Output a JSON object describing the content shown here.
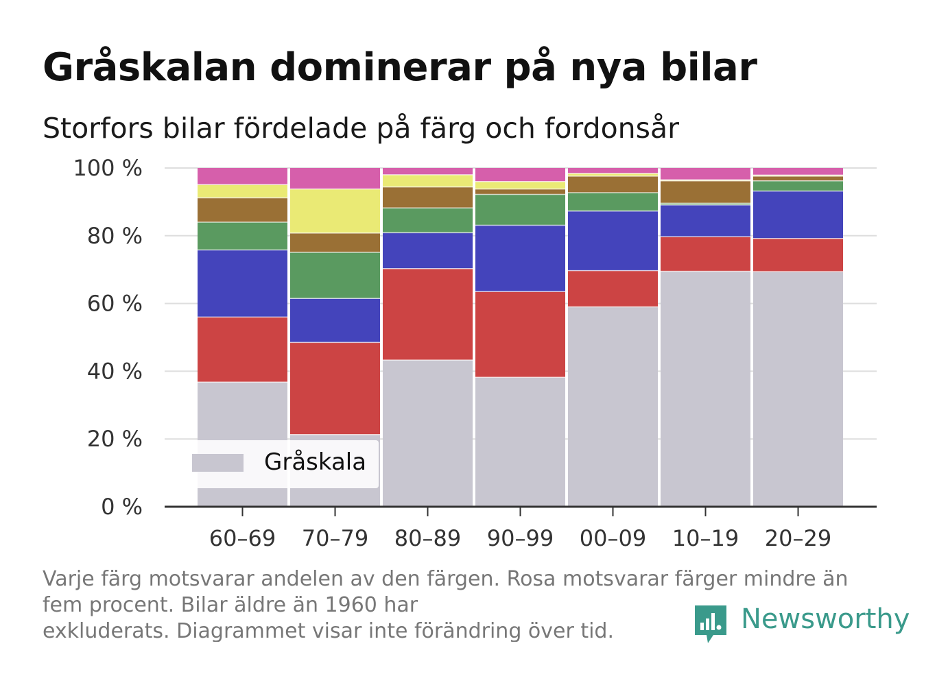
{
  "title": "Gråskalan dominerar på nya bilar",
  "subtitle": "Storfors bilar fördelade på färg och fordonsår",
  "legend": {
    "label": "Gråskala",
    "color": "#c8c6d0"
  },
  "footnote": {
    "line1": "Varje färg motsvarar andelen av den färgen. Rosa motsvarar färger mindre än",
    "line2": "fem procent. Bilar äldre än 1960 har",
    "line3": "exkluderats. Diagrammet visar inte förändring över tid."
  },
  "logo": {
    "text": "Newsworthy",
    "color": "#3a9a8b"
  },
  "chart_data": {
    "type": "bar",
    "stacked": true,
    "categories": [
      "60–69",
      "70–79",
      "80–89",
      "90–99",
      "00–09",
      "10–19",
      "20–29"
    ],
    "ylim": [
      0,
      100
    ],
    "yticks": [
      0,
      20,
      40,
      60,
      80,
      100
    ],
    "ytick_labels": [
      "0 %",
      "20 %",
      "40 %",
      "60 %",
      "80 %",
      "100 %"
    ],
    "grid": true,
    "legend_position": "bottom-left",
    "series": [
      {
        "name": "Gråskala",
        "color": "#c8c6d0",
        "values": [
          36.8,
          21.3,
          43.3,
          38.2,
          59.0,
          69.5,
          69.4
        ]
      },
      {
        "color": "#cc4444",
        "values": [
          19.2,
          27.2,
          27.0,
          25.3,
          10.7,
          10.2,
          9.8
        ]
      },
      {
        "color": "#4444bb",
        "values": [
          19.8,
          13.0,
          10.6,
          19.6,
          17.6,
          9.4,
          14.0
        ]
      },
      {
        "color": "#5a9a60",
        "values": [
          8.2,
          13.6,
          7.3,
          9.1,
          5.4,
          0.5,
          3.0
        ]
      },
      {
        "color": "#9a7035",
        "values": [
          7.2,
          5.7,
          6.2,
          1.6,
          4.9,
          6.6,
          1.4
        ]
      },
      {
        "color": "#eaea75",
        "values": [
          3.9,
          13.0,
          3.6,
          2.2,
          0.8,
          0.3,
          0.3
        ]
      },
      {
        "color": "#d65fab",
        "values": [
          4.9,
          6.2,
          2.0,
          4.0,
          1.6,
          3.5,
          2.1
        ]
      }
    ]
  }
}
